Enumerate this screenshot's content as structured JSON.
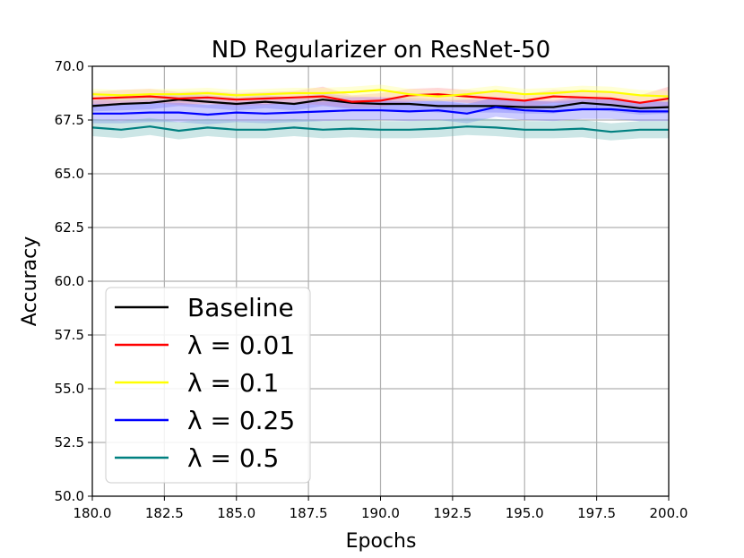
{
  "chart_data": {
    "type": "line",
    "title": "ND Regularizer on ResNet-50",
    "xlabel": "Epochs",
    "ylabel": "Accuracy",
    "xlim": [
      180,
      200
    ],
    "ylim": [
      50,
      70
    ],
    "xticks": [
      "180.0",
      "182.5",
      "185.0",
      "187.5",
      "190.0",
      "192.5",
      "195.0",
      "197.5",
      "200.0"
    ],
    "yticks": [
      "50.0",
      "52.5",
      "55.0",
      "57.5",
      "60.0",
      "62.5",
      "65.0",
      "67.5",
      "70.0"
    ],
    "grid": true,
    "legend_position": "lower-left",
    "x": [
      180,
      181,
      182,
      183,
      184,
      185,
      186,
      187,
      188,
      189,
      190,
      191,
      192,
      193,
      194,
      195,
      196,
      197,
      198,
      199,
      200
    ],
    "series": [
      {
        "name": "Baseline",
        "color": "#000000",
        "band_color": "#8080ff",
        "values": [
          68.15,
          68.25,
          68.3,
          68.45,
          68.35,
          68.25,
          68.35,
          68.25,
          68.45,
          68.3,
          68.25,
          68.25,
          68.15,
          68.15,
          68.15,
          68.1,
          68.1,
          68.3,
          68.2,
          68.05,
          68.1
        ],
        "lower": [
          67.9,
          67.95,
          68.0,
          68.15,
          68.05,
          67.95,
          68.05,
          67.95,
          68.15,
          68.0,
          67.95,
          67.95,
          67.85,
          67.85,
          67.85,
          67.8,
          67.8,
          68.0,
          67.9,
          67.75,
          67.8
        ],
        "upper": [
          68.4,
          68.55,
          68.6,
          68.75,
          68.65,
          68.55,
          68.65,
          68.55,
          68.75,
          68.6,
          68.55,
          68.55,
          68.45,
          68.45,
          68.45,
          68.4,
          68.4,
          68.6,
          68.5,
          68.35,
          68.4
        ]
      },
      {
        "name": "λ = 0.01",
        "color": "#ff0000",
        "band_color": "#ff9a9a",
        "values": [
          68.5,
          68.55,
          68.6,
          68.5,
          68.55,
          68.45,
          68.5,
          68.55,
          68.6,
          68.35,
          68.4,
          68.65,
          68.7,
          68.6,
          68.5,
          68.4,
          68.6,
          68.55,
          68.5,
          68.3,
          68.5
        ],
        "lower": [
          68.2,
          68.25,
          68.3,
          68.2,
          68.25,
          68.15,
          68.2,
          68.25,
          68.2,
          68.05,
          68.1,
          68.35,
          68.4,
          68.3,
          68.2,
          68.1,
          68.3,
          68.25,
          68.2,
          68.0,
          68.1
        ],
        "upper": [
          68.8,
          68.9,
          68.95,
          68.8,
          68.85,
          68.75,
          68.8,
          68.85,
          69.05,
          68.65,
          68.75,
          68.95,
          69.0,
          68.9,
          68.8,
          68.7,
          68.9,
          68.85,
          68.8,
          68.65,
          69.05
        ]
      },
      {
        "name": "λ = 0.1",
        "color": "#ffff00",
        "band_color": "#ffff99",
        "values": [
          68.7,
          68.65,
          68.7,
          68.7,
          68.75,
          68.65,
          68.7,
          68.75,
          68.75,
          68.8,
          68.9,
          68.7,
          68.6,
          68.7,
          68.85,
          68.7,
          68.75,
          68.85,
          68.8,
          68.65,
          68.6
        ],
        "lower": [
          68.45,
          68.4,
          68.45,
          68.45,
          68.5,
          68.4,
          68.45,
          68.5,
          68.5,
          68.55,
          68.6,
          68.45,
          68.35,
          68.45,
          68.6,
          68.45,
          68.5,
          68.6,
          68.55,
          68.4,
          68.35
        ],
        "upper": [
          68.95,
          68.9,
          68.95,
          68.95,
          69.0,
          68.9,
          68.95,
          69.0,
          69.0,
          69.05,
          69.15,
          68.95,
          68.85,
          68.95,
          69.1,
          68.95,
          69.0,
          69.1,
          69.05,
          68.9,
          68.85
        ]
      },
      {
        "name": "λ = 0.25",
        "color": "#0000ff",
        "band_color": "#8080ff",
        "values": [
          67.8,
          67.8,
          67.85,
          67.85,
          67.75,
          67.85,
          67.8,
          67.85,
          67.9,
          67.95,
          67.95,
          67.9,
          67.95,
          67.8,
          68.1,
          67.95,
          67.9,
          68.0,
          68.0,
          67.9,
          67.9
        ],
        "lower": [
          67.35,
          67.35,
          67.4,
          67.4,
          67.3,
          67.4,
          67.35,
          67.4,
          67.45,
          67.5,
          67.5,
          67.45,
          67.5,
          67.35,
          67.65,
          67.5,
          67.45,
          67.55,
          67.55,
          67.45,
          67.45
        ],
        "upper": [
          68.25,
          68.25,
          68.3,
          68.3,
          68.2,
          68.3,
          68.25,
          68.3,
          68.35,
          68.4,
          68.4,
          68.35,
          68.4,
          68.25,
          68.55,
          68.4,
          68.35,
          68.45,
          68.45,
          68.35,
          68.35
        ]
      },
      {
        "name": "λ = 0.5",
        "color": "#008080",
        "band_color": "#80c0c0",
        "values": [
          67.15,
          67.05,
          67.2,
          67.0,
          67.15,
          67.05,
          67.05,
          67.15,
          67.05,
          67.1,
          67.05,
          67.05,
          67.1,
          67.2,
          67.15,
          67.05,
          67.05,
          67.1,
          66.95,
          67.05,
          67.05
        ],
        "lower": [
          66.75,
          66.65,
          66.8,
          66.6,
          66.75,
          66.65,
          66.65,
          66.75,
          66.65,
          66.7,
          66.65,
          66.65,
          66.7,
          66.8,
          66.75,
          66.65,
          66.65,
          66.7,
          66.55,
          66.65,
          66.65
        ],
        "upper": [
          67.55,
          67.45,
          67.6,
          67.4,
          67.55,
          67.45,
          67.45,
          67.55,
          67.45,
          67.5,
          67.45,
          67.45,
          67.5,
          67.6,
          67.55,
          67.45,
          67.45,
          67.5,
          67.35,
          67.45,
          67.45
        ]
      }
    ]
  }
}
